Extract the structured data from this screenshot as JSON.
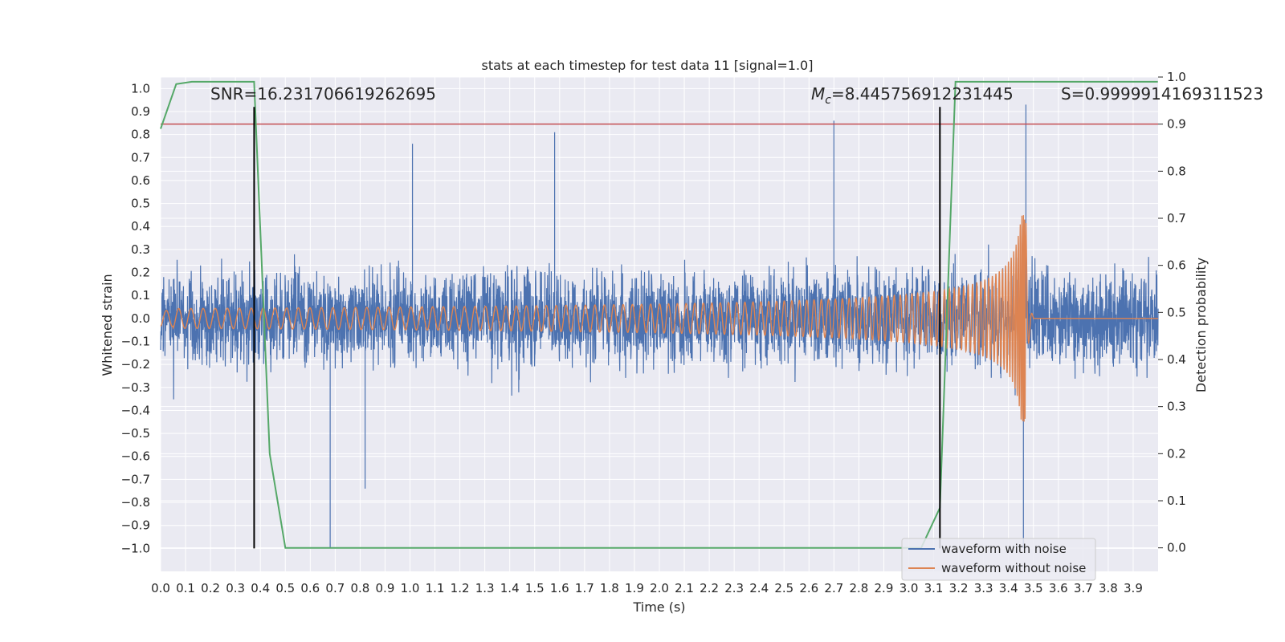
{
  "chart_data": {
    "type": "line",
    "title": "stats at each timestep for test data 11 [signal=1.0]",
    "xlabel": "Time (s)",
    "ylabel": "Whitened strain",
    "y2label": "Detection probability",
    "xlim": [
      0.0,
      4.0
    ],
    "ylim": [
      -1.1,
      1.05
    ],
    "y2lim": [
      -0.05,
      1.0
    ],
    "x_ticks": [
      "0.0",
      "0.1",
      "0.2",
      "0.3",
      "0.4",
      "0.5",
      "0.6",
      "0.7",
      "0.8",
      "0.9",
      "1.0",
      "1.1",
      "1.2",
      "1.3",
      "1.4",
      "1.5",
      "1.6",
      "1.7",
      "1.8",
      "1.9",
      "2.0",
      "2.1",
      "2.2",
      "2.3",
      "2.4",
      "2.5",
      "2.6",
      "2.7",
      "2.8",
      "2.9",
      "3.0",
      "3.1",
      "3.2",
      "3.3",
      "3.4",
      "3.5",
      "3.6",
      "3.7",
      "3.8",
      "3.9"
    ],
    "y_ticks": [
      "1.0",
      "0.9",
      "0.8",
      "0.7",
      "0.6",
      "0.5",
      "0.4",
      "0.3",
      "0.2",
      "0.1",
      "0.0",
      "−0.1",
      "−0.2",
      "−0.3",
      "−0.4",
      "−0.5",
      "−0.6",
      "−0.7",
      "−0.8",
      "−0.9",
      "−1.0"
    ],
    "y2_ticks": [
      "1.0",
      "0.9",
      "0.8",
      "0.7",
      "0.6",
      "0.5",
      "0.4",
      "0.3",
      "0.2",
      "0.1",
      "0.0"
    ],
    "annotations": {
      "snr": "SNR=16.231706619262695",
      "mc_symbol": "M",
      "mc_sub": "c",
      "mc_value": "=8.445756912231445",
      "s": "S=0.9999914169311523"
    },
    "legend": {
      "location": "lower-right",
      "entries": [
        "waveform with noise",
        "waveform without noise"
      ]
    },
    "colors": {
      "noise": "#4c72b0",
      "clean": "#dd8452",
      "probability": "#55a868",
      "threshold": "#c44e52",
      "markers": "#000000",
      "background": "#eaeaf2",
      "grid": "#ffffff"
    },
    "threshold_y2": 0.9,
    "marker_lines_x": [
      0.375,
      3.125
    ],
    "noise_series": {
      "name": "waveform with noise",
      "description": "dense whitened noise sampled over 0-4 s, amplitude mostly within ±0.5 with spikes to ~±0.9",
      "extremes": [
        {
          "x": 0.68,
          "y": -1.0
        },
        {
          "x": 0.82,
          "y": -0.74
        },
        {
          "x": 1.01,
          "y": 0.76
        },
        {
          "x": 1.58,
          "y": 0.81
        },
        {
          "x": 2.7,
          "y": 0.86
        },
        {
          "x": 3.47,
          "y": 0.93
        },
        {
          "x": 3.46,
          "y": -1.0
        }
      ]
    },
    "clean_series": {
      "name": "waveform without noise",
      "description": "inspiral chirp: amplitude grows from ~0.03 at t=0 to ~0.45 peak near t=3.47, ringdown to 0 by t=3.5",
      "peak": {
        "x": 3.47,
        "y": 0.45
      },
      "merger_time": 3.47
    },
    "probability_series": {
      "name": "detection probability",
      "axis": "y2",
      "x": [
        0.0,
        0.0625,
        0.125,
        0.1875,
        0.25,
        0.3125,
        0.375,
        0.4375,
        0.5,
        0.5625,
        1.0,
        2.0,
        3.0,
        3.05,
        3.125,
        3.1875,
        3.25,
        3.5,
        3.999
      ],
      "y": [
        0.89,
        0.985,
        0.99,
        0.99,
        0.99,
        0.99,
        0.99,
        0.2,
        0.0,
        0.0,
        0.0,
        0.0,
        0.0,
        0.0,
        0.085,
        0.99,
        0.99,
        0.99,
        0.99
      ]
    }
  }
}
